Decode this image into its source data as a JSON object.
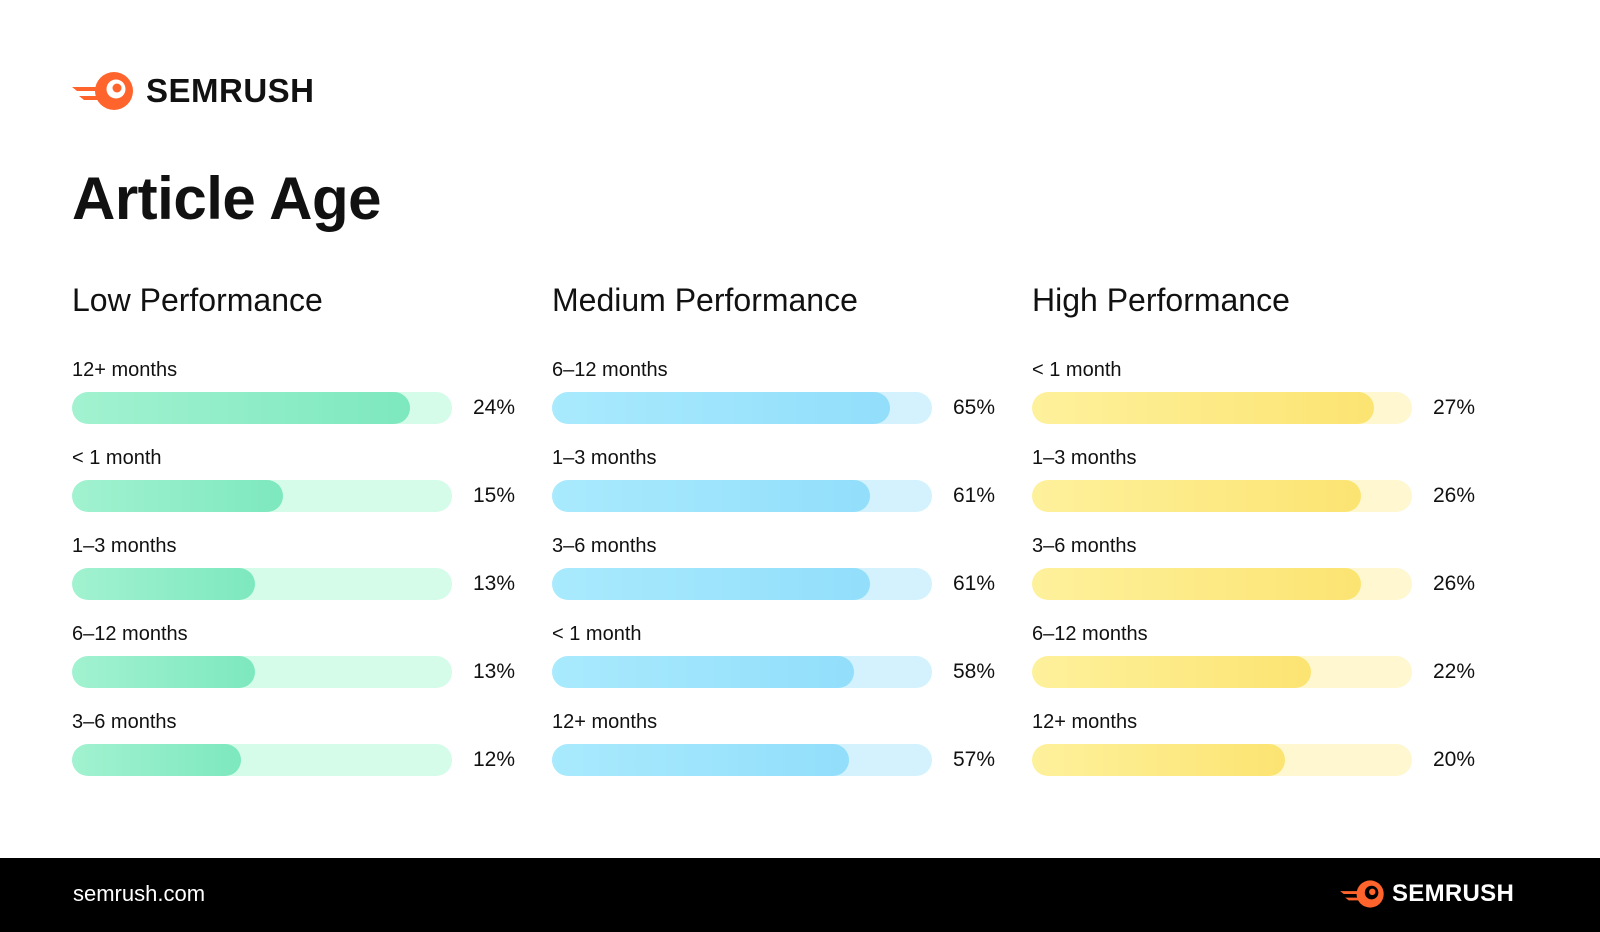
{
  "brand": {
    "name": "SEMRUSH",
    "url": "semrush.com",
    "logo_icon": "semrush-comet-icon",
    "brand_color": "#FF642D"
  },
  "page_title": "Article Age",
  "chart_data": [
    {
      "type": "bar",
      "orientation": "horizontal",
      "title": "Low Performance",
      "categories": [
        "12+ months",
        "< 1 month",
        "1–3 months",
        "6–12 months",
        "3–6 months"
      ],
      "values": [
        24,
        15,
        13,
        13,
        12
      ],
      "value_labels": [
        "24%",
        "15%",
        "13%",
        "13%",
        "12%"
      ],
      "unit": "%",
      "xlim": [
        0,
        27
      ],
      "colors": {
        "fill_start": "#A2F2D0",
        "fill_end": "#7DE8BE",
        "track": "#D5FBE9"
      }
    },
    {
      "type": "bar",
      "orientation": "horizontal",
      "title": "Medium Performance",
      "categories": [
        "6–12 months",
        "1–3 months",
        "3–6 months",
        "< 1 month",
        "12+ months"
      ],
      "values": [
        65,
        61,
        61,
        58,
        57
      ],
      "value_labels": [
        "65%",
        "61%",
        "61%",
        "58%",
        "57%"
      ],
      "unit": "%",
      "xlim": [
        0,
        73
      ],
      "colors": {
        "fill_start": "#A9EAFD",
        "fill_end": "#92DEFB",
        "track": "#D3F2FD"
      }
    },
    {
      "type": "bar",
      "orientation": "horizontal",
      "title": "High Performance",
      "categories": [
        "< 1 month",
        "1–3 months",
        "3–6 months",
        "6–12 months",
        "12+ months"
      ],
      "values": [
        27,
        26,
        26,
        22,
        20
      ],
      "value_labels": [
        "27%",
        "26%",
        "26%",
        "22%",
        "20%"
      ],
      "unit": "%",
      "xlim": [
        0,
        30
      ],
      "colors": {
        "fill_start": "#FEF19C",
        "fill_end": "#FCE472",
        "track": "#FEF7CF"
      }
    }
  ]
}
